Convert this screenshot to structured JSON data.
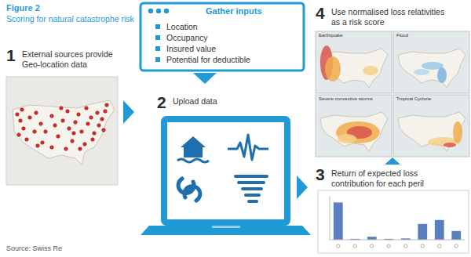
{
  "header": {
    "figure": "Figure 2",
    "title": "Scoring for natural catastrophe risk"
  },
  "steps": [
    {
      "number": 1,
      "text": "External sources provide Geo-location data"
    },
    {
      "number": 2,
      "text": "Upload data"
    },
    {
      "number": 3,
      "text": "Return of expected loss contribution for each peril"
    },
    {
      "number": 4,
      "text": "Use normalised loss relativities as a risk score"
    }
  ],
  "inputs": {
    "title": "Gather inputs",
    "items": [
      "Location",
      "Occupancy",
      "Insured value",
      "Potential for deductible"
    ]
  },
  "maps": [
    "Earthquake",
    "Flood",
    "Severe convective storms",
    "Tropical Cyclone"
  ],
  "chart_data": {
    "type": "bar",
    "categories": [
      null,
      null,
      null,
      null,
      null,
      null,
      null,
      null
    ],
    "values": [
      0.85,
      0.02,
      0.07,
      0.02,
      0.03,
      0.36,
      0.45,
      0.2
    ],
    "color": "#5a7fc0",
    "ylim": [
      0,
      1
    ],
    "grid": false,
    "tick_labels": false
  },
  "source": "Source: Swiss Re"
}
